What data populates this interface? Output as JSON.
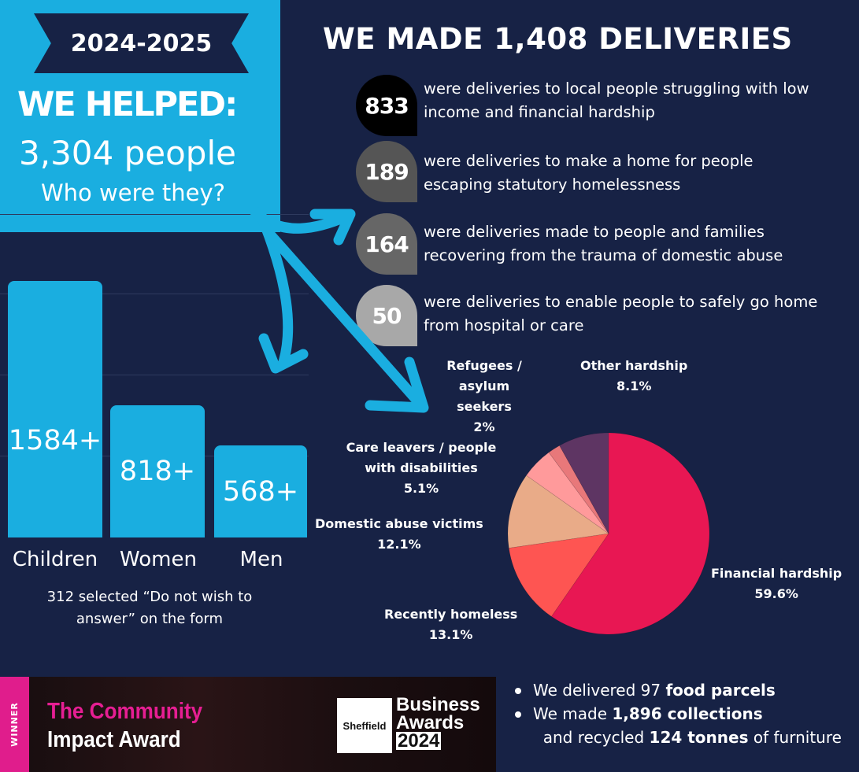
{
  "header": {
    "year": "2024-2025",
    "helped": "WE HELPED:",
    "people": "3,304 people",
    "question": "Who were they?",
    "deliveries_title": "WE MADE 1,408 DELIVERIES"
  },
  "deliveries": [
    {
      "count": "833",
      "text": "were deliveries to local people struggling with low income and financial hardship",
      "color": "#000000"
    },
    {
      "count": "189",
      "text": "were deliveries to make a home for people escaping statutory homelessness",
      "color": "#555555"
    },
    {
      "count": "164",
      "text": "were deliveries made to people and families recovering from the trauma of domestic abuse",
      "color": "#666666"
    },
    {
      "count": "50",
      "text": "were deliveries to enable people to safely go home from hospital or care",
      "color": "#a8a8a8"
    }
  ],
  "people_bars": {
    "categories": [
      "Children",
      "Women",
      "Men"
    ],
    "values": [
      1584,
      818,
      568
    ],
    "labels": [
      "1584+",
      "818+",
      "568+"
    ],
    "note": "312 selected “Do not wish to answer” on the form"
  },
  "chart_data": {
    "type": "pie",
    "slices": [
      {
        "label": "Financial hardship",
        "value": 59.6,
        "display": "59.6%",
        "color": "#e81753"
      },
      {
        "label": "Recently homeless",
        "value": 13.1,
        "display": "13.1%",
        "color": "#fe5552"
      },
      {
        "label": "Domestic abuse victims",
        "value": 12.1,
        "display": "12.1%",
        "color": "#e9ab88"
      },
      {
        "label": "Care leavers / people with disabilities",
        "value": 5.1,
        "display": "5.1%",
        "color": "#ff9a9b"
      },
      {
        "label": "Refugees / asylum seekers",
        "value": 2,
        "display": "2%",
        "color": "#e8787a"
      },
      {
        "label": "Other hardship",
        "value": 8.1,
        "display": "8.1%",
        "color": "#5e3563"
      }
    ]
  },
  "award": {
    "winner": "WINNER",
    "line1": "The Community",
    "line2": "Impact Award",
    "sheffield": "Sheffield",
    "business": "Business",
    "awards": "Awards",
    "year": "2024"
  },
  "bullets": [
    {
      "pre": "We delivered 97 ",
      "bold": "food parcels",
      "post": ""
    },
    {
      "pre": "We made ",
      "bold": "1,896 collections",
      "post": "  and recycled ",
      "bold2": "124 tonnes",
      "post2": " of furniture"
    }
  ],
  "colors": {
    "navy": "#172245",
    "blue": "#1aaee0",
    "pink": "#e01d8c"
  }
}
